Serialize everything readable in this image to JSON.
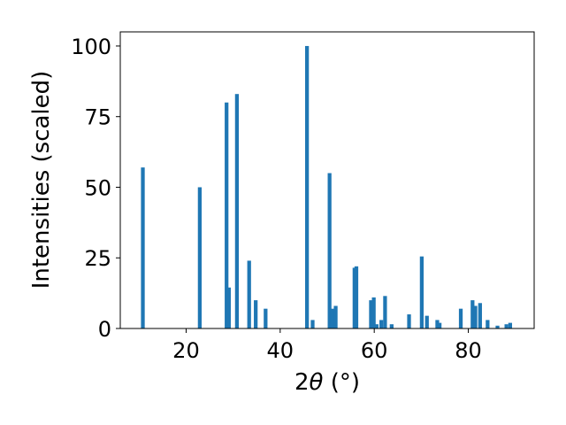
{
  "chart_data": {
    "type": "bar",
    "title": "",
    "xlabel": "2θ (°)",
    "xlabel_parts": {
      "prefix": "2",
      "symbol": "θ",
      "suffix": " (°)"
    },
    "ylabel": "Intensities (scaled)",
    "xlim": [
      6,
      94
    ],
    "ylim": [
      0,
      105
    ],
    "xticks": [
      20,
      40,
      60,
      80
    ],
    "yticks": [
      0,
      25,
      50,
      75,
      100
    ],
    "grid": false,
    "legend": "none",
    "color": "#1f77b4",
    "bar_width": 0.8,
    "x": [
      10.8,
      22.9,
      28.6,
      29.1,
      30.8,
      33.4,
      34.8,
      36.9,
      45.7,
      46.9,
      50.5,
      51.1,
      51.8,
      55.8,
      56.2,
      59.3,
      59.9,
      60.5,
      61.5,
      62.3,
      63.7,
      67.4,
      70.1,
      71.2,
      73.4,
      73.9,
      78.4,
      80.9,
      81.5,
      82.5,
      84.1,
      86.2,
      88.1,
      88.9
    ],
    "y": [
      57,
      50,
      80,
      14.5,
      83,
      24,
      10,
      7,
      100,
      3,
      55,
      7,
      8,
      21.5,
      22,
      10,
      11,
      1.5,
      3,
      11.5,
      1.5,
      5,
      25.5,
      4.5,
      3,
      2,
      7,
      10,
      8,
      9,
      3,
      1,
      1.5,
      2
    ]
  }
}
